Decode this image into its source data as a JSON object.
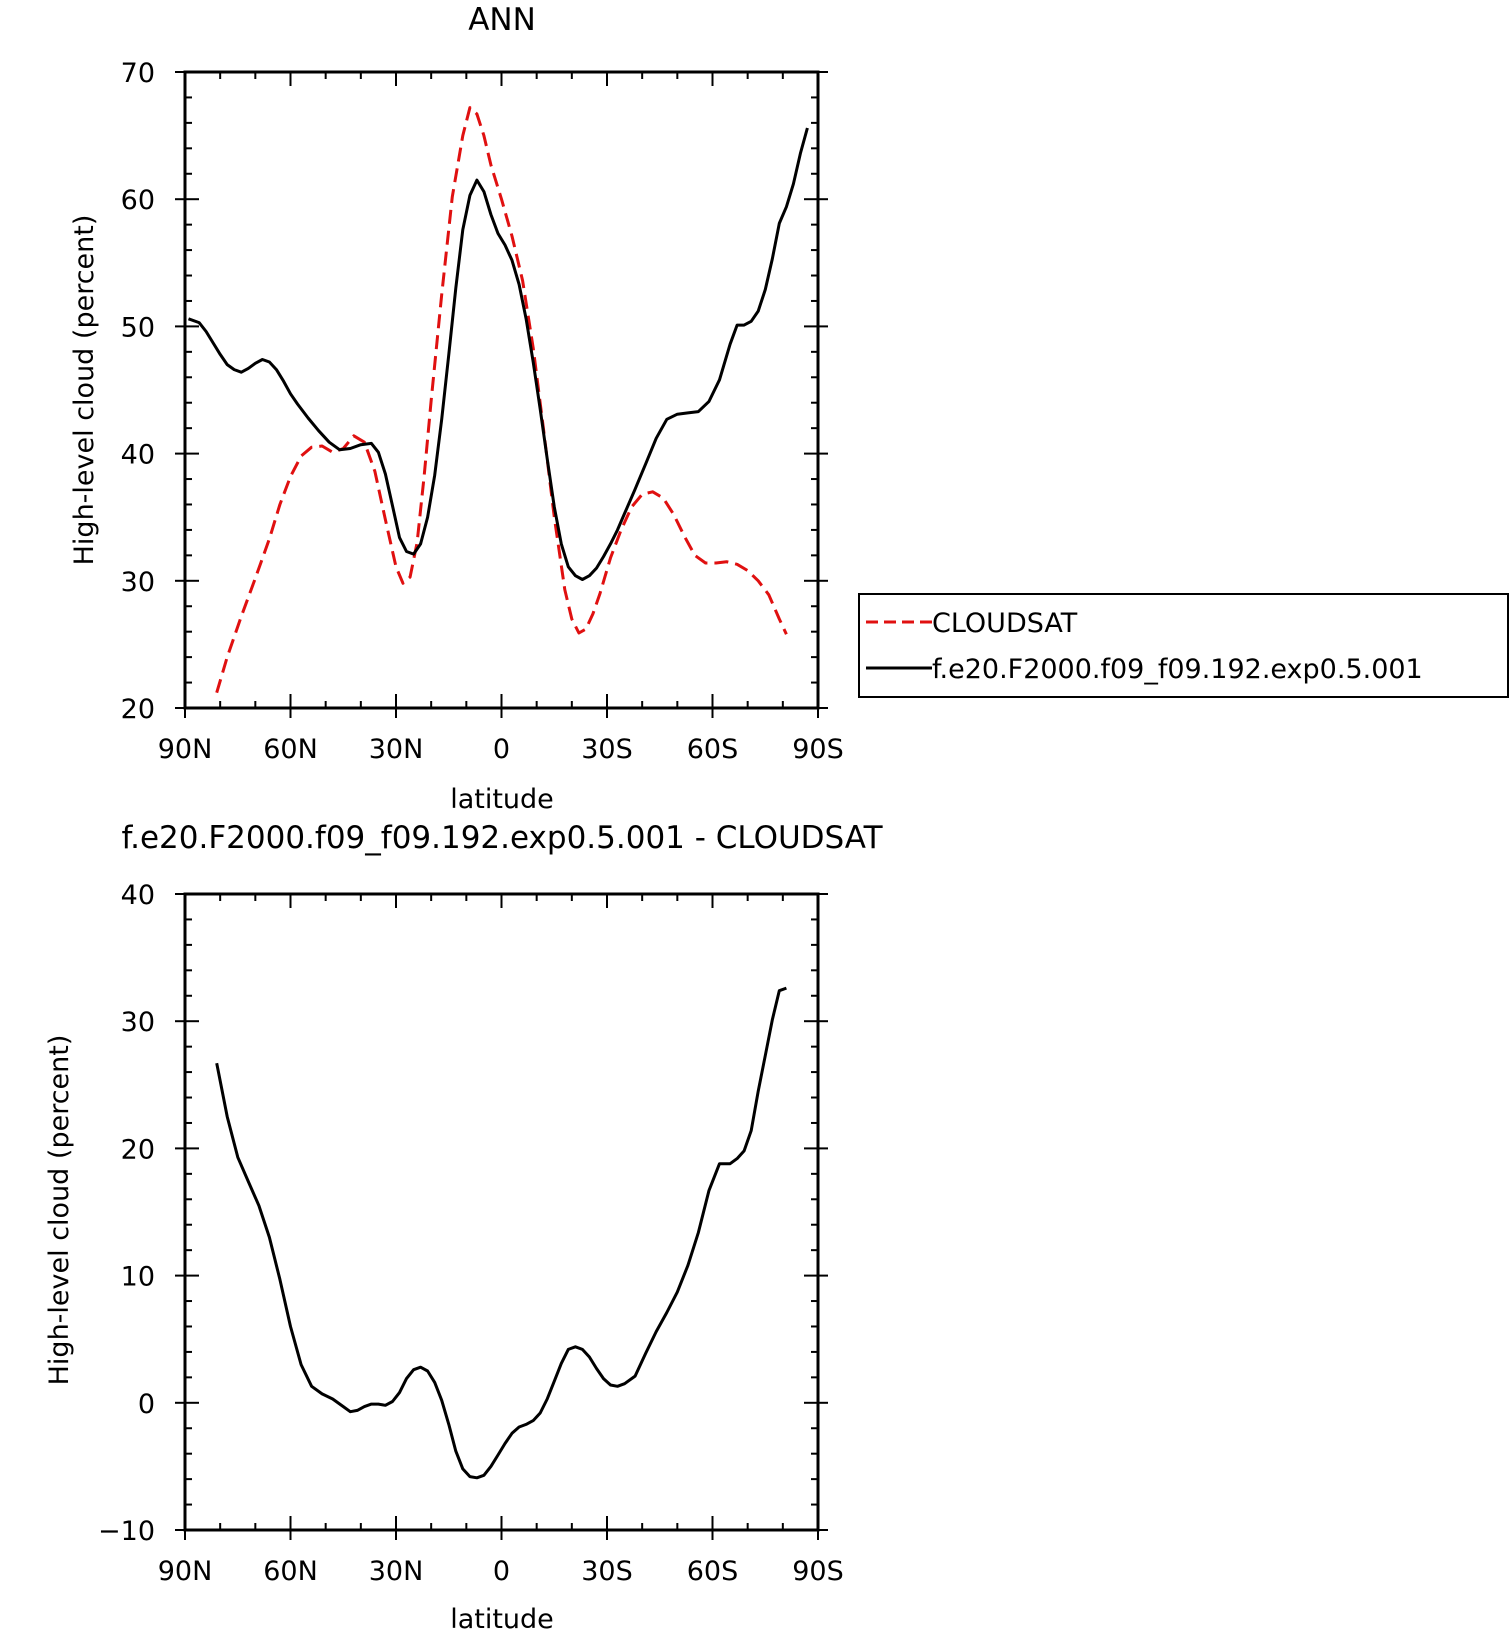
{
  "chart_data": [
    {
      "type": "line",
      "title": "ANN",
      "xlabel": "latitude",
      "ylabel": "High-level cloud (percent)",
      "x_ticks": [
        "90N",
        "60N",
        "30N",
        "0",
        "30S",
        "60S",
        "90S"
      ],
      "y_ticks": [
        "20",
        "30",
        "40",
        "50",
        "60",
        "70"
      ],
      "xlim": [
        90,
        -90
      ],
      "ylim": [
        20,
        70
      ],
      "legend": {
        "placement": "right"
      },
      "series": [
        {
          "name": "CLOUDSAT",
          "color": "#e01010",
          "dash": "dashed",
          "x": [
            81,
            78,
            74,
            70,
            66,
            63,
            60,
            57,
            54,
            51,
            48,
            45,
            42,
            39,
            36,
            33,
            30,
            28,
            26,
            24,
            22,
            20,
            17,
            14,
            11,
            9,
            7,
            5,
            3,
            0,
            -3,
            -6,
            -9,
            -12,
            -15,
            -18,
            -20,
            -22,
            -24,
            -26,
            -28,
            -31,
            -34,
            -37,
            -40,
            -43,
            -46,
            -49,
            -52,
            -55,
            -58,
            -61,
            -64,
            -67,
            -70,
            -73,
            -76,
            -79,
            -81
          ],
          "y": [
            21.2,
            24.0,
            27.2,
            30.2,
            33.3,
            36.0,
            38.2,
            39.8,
            40.5,
            40.6,
            40.1,
            40.4,
            41.4,
            40.9,
            38.6,
            34.8,
            31.1,
            29.8,
            30.3,
            33.0,
            38.2,
            44.2,
            52.5,
            60.2,
            65.0,
            67.2,
            66.7,
            65.0,
            62.7,
            60.0,
            57.1,
            53.6,
            48.3,
            41.8,
            35.0,
            29.3,
            27.0,
            25.9,
            26.2,
            27.4,
            29.0,
            31.8,
            34.0,
            35.8,
            36.8,
            37.0,
            36.5,
            35.2,
            33.5,
            32.0,
            31.4,
            31.4,
            31.5,
            31.3,
            30.8,
            30.0,
            28.9,
            27.0,
            25.8
          ]
        },
        {
          "name": "f.e20.F2000.f09_f09.192.exp0.5.001",
          "color": "#000000",
          "dash": "solid",
          "x": [
            89,
            86,
            84,
            82,
            80,
            78,
            76,
            74,
            72,
            70,
            68,
            66,
            64,
            62,
            60,
            58,
            55,
            52,
            49,
            46,
            43,
            40,
            37,
            35,
            33,
            31,
            29,
            27,
            25,
            23,
            21,
            19,
            17,
            15,
            13,
            11,
            9,
            7,
            5,
            3,
            1,
            -1,
            -3,
            -5,
            -7,
            -9,
            -11,
            -13,
            -15,
            -17,
            -19,
            -21,
            -23,
            -25,
            -27,
            -29,
            -31,
            -33,
            -35,
            -38,
            -41,
            -44,
            -47,
            -50,
            -53,
            -56,
            -59,
            -62,
            -65,
            -67,
            -69,
            -71,
            -73,
            -75,
            -77,
            -79,
            -81,
            -83,
            -85,
            -87
          ],
          "y": [
            50.6,
            50.3,
            49.6,
            48.7,
            47.8,
            47.0,
            46.6,
            46.4,
            46.7,
            47.1,
            47.4,
            47.2,
            46.6,
            45.7,
            44.7,
            43.9,
            42.8,
            41.8,
            40.9,
            40.3,
            40.4,
            40.7,
            40.8,
            40.1,
            38.4,
            35.9,
            33.4,
            32.3,
            32.1,
            32.9,
            35.0,
            38.3,
            42.7,
            47.8,
            53.0,
            57.6,
            60.3,
            61.5,
            60.6,
            58.8,
            57.3,
            56.4,
            55.2,
            53.3,
            50.6,
            47.2,
            43.5,
            39.6,
            35.8,
            32.9,
            31.1,
            30.4,
            30.1,
            30.4,
            31.0,
            31.9,
            32.9,
            34.0,
            35.3,
            37.2,
            39.2,
            41.2,
            42.7,
            43.1,
            43.2,
            43.3,
            44.1,
            45.8,
            48.6,
            50.1,
            50.1,
            50.4,
            51.2,
            52.9,
            55.3,
            58.1,
            59.4,
            61.2,
            63.6,
            65.6
          ]
        }
      ]
    },
    {
      "type": "line",
      "title": "f.e20.F2000.f09_f09.192.exp0.5.001 - CLOUDSAT",
      "xlabel": "latitude",
      "ylabel": "High-level cloud (percent)",
      "x_ticks": [
        "90N",
        "60N",
        "30N",
        "0",
        "30S",
        "60S",
        "90S"
      ],
      "y_ticks": [
        "−10",
        "0",
        "10",
        "20",
        "30",
        "40"
      ],
      "xlim": [
        90,
        -90
      ],
      "ylim": [
        -10,
        40
      ],
      "series": [
        {
          "color": "#000000",
          "dash": "solid",
          "x": [
            81,
            78,
            75,
            72,
            69,
            66,
            63,
            60,
            57,
            54,
            51,
            48,
            45,
            43,
            41,
            39,
            37,
            35,
            33,
            31,
            29,
            27,
            25,
            23,
            21,
            19,
            17,
            15,
            13,
            11,
            9,
            7,
            5,
            3,
            1,
            -1,
            -3,
            -5,
            -7,
            -9,
            -11,
            -13,
            -15,
            -17,
            -19,
            -21,
            -23,
            -25,
            -27,
            -29,
            -31,
            -33,
            -35,
            -38,
            -41,
            -44,
            -47,
            -50,
            -53,
            -56,
            -59,
            -62,
            -65,
            -67,
            -69,
            -71,
            -73,
            -75,
            -77,
            -79,
            -81
          ],
          "y": [
            26.7,
            22.5,
            19.3,
            17.4,
            15.5,
            13.0,
            9.7,
            6.0,
            3.0,
            1.3,
            0.7,
            0.3,
            -0.3,
            -0.7,
            -0.6,
            -0.3,
            -0.1,
            -0.1,
            -0.2,
            0.1,
            0.8,
            1.9,
            2.6,
            2.8,
            2.5,
            1.6,
            0.2,
            -1.7,
            -3.8,
            -5.2,
            -5.8,
            -5.9,
            -5.7,
            -5.0,
            -4.1,
            -3.2,
            -2.4,
            -1.9,
            -1.7,
            -1.4,
            -0.8,
            0.3,
            1.7,
            3.1,
            4.2,
            4.4,
            4.2,
            3.6,
            2.7,
            1.9,
            1.4,
            1.3,
            1.5,
            2.1,
            3.9,
            5.6,
            7.1,
            8.7,
            10.8,
            13.4,
            16.7,
            18.8,
            18.8,
            19.2,
            19.8,
            21.4,
            24.5,
            27.3,
            30.1,
            32.4,
            32.6
          ]
        }
      ]
    }
  ]
}
